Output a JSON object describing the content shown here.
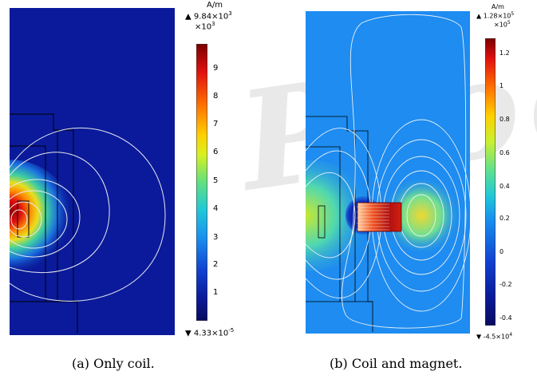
{
  "watermark": "Proof",
  "figure_a": {
    "unit": "A/m",
    "max_label": "▲ 9.84×10",
    "max_exp": "3",
    "multiplier": "×10",
    "multiplier_exp": "3",
    "ticks": [
      "9",
      "8",
      "7",
      "6",
      "5",
      "4",
      "3",
      "2",
      "1"
    ],
    "min_label": "▼ 4.33×10",
    "min_exp": "-5",
    "caption": "(a) Only coil."
  },
  "figure_b": {
    "unit": "A/m",
    "max_label": "▲ 1.28×10",
    "max_exp": "5",
    "multiplier": "×10",
    "multiplier_exp": "5",
    "ticks": [
      "1.2",
      "1",
      "0.8",
      "0.6",
      "0.4",
      "0.2",
      "0",
      "-0.2",
      "-0.4"
    ],
    "min_label": "▼ -4.5×10",
    "min_exp": "4",
    "caption": "(b) Coil and magnet."
  },
  "colors": {
    "field_dark_blue": "#0a1a9a",
    "field_light_blue": "#1e8cf0",
    "hot_red": "#b0120a"
  }
}
